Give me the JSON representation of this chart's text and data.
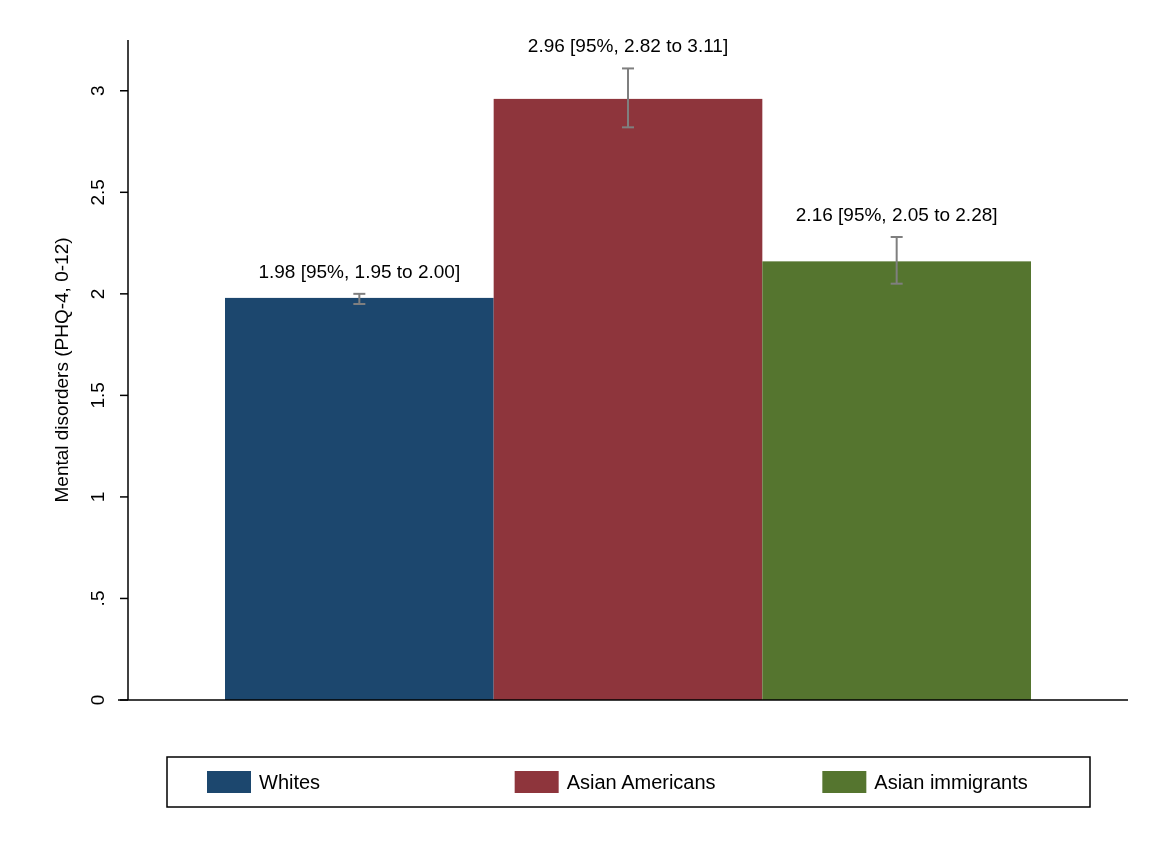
{
  "chart_data": {
    "type": "bar",
    "ylabel": "Mental disorders (PHQ-4, 0-12)",
    "categories": [
      null,
      null,
      null
    ],
    "series": [
      {
        "name": "Whites",
        "color": "#1c476e",
        "values": [
          1.98,
          null,
          null
        ],
        "errors": [
          [
            1.95,
            2.0
          ],
          null,
          null
        ],
        "value_labels": [
          "1.98 [95%, 1.95 to 2.00]",
          null,
          null
        ]
      },
      {
        "name": "Asian Americans",
        "color": "#8e353c",
        "values": [
          null,
          2.96,
          null
        ],
        "errors": [
          null,
          [
            2.82,
            3.11
          ],
          null
        ],
        "value_labels": [
          null,
          "2.96 [95%, 2.82 to 3.11]",
          null
        ]
      },
      {
        "name": "Asian immigrants",
        "color": "#55752f",
        "values": [
          null,
          null,
          2.16
        ],
        "errors": [
          null,
          null,
          [
            2.05,
            2.28
          ]
        ],
        "value_labels": [
          null,
          null,
          "2.16 [95%, 2.05 to 2.28]"
        ]
      }
    ],
    "ylim": [
      0,
      3.25
    ],
    "yticks": [
      0,
      {
        "value": 0.5,
        "label": ".5"
      },
      1,
      1.5,
      2,
      2.5,
      3
    ],
    "grid": false,
    "legend": "bottom"
  }
}
